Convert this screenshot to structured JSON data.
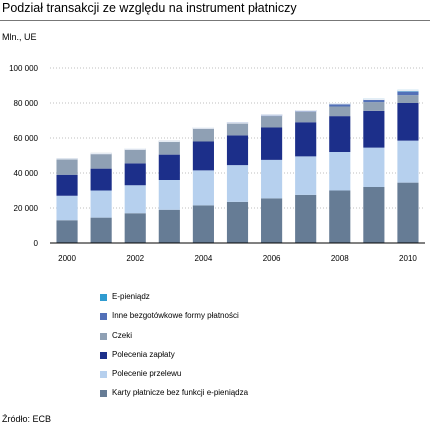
{
  "header": {
    "title": "Podział transakcji ze względu na instrument płatniczy",
    "unit": "Mln., UE"
  },
  "footer": {
    "source": "Źródło: ECB"
  },
  "colors": {
    "title_rule": "#777777",
    "axis": "#000000",
    "gridline": "#aaaaaa"
  },
  "chart_data": {
    "type": "bar",
    "stacked": true,
    "title": "",
    "xlabel": "",
    "ylabel": "",
    "categories": [
      "2000",
      "2001",
      "2002",
      "2003",
      "2004",
      "2005",
      "2006",
      "2007",
      "2008",
      "2009",
      "2010"
    ],
    "x_tick_labels": [
      "2000",
      "",
      "2002",
      "",
      "2004",
      "",
      "2006",
      "",
      "2008",
      "",
      "2010"
    ],
    "ylim": [
      0,
      100000
    ],
    "yticks": [
      0,
      20000,
      40000,
      60000,
      80000,
      100000
    ],
    "ytick_labels": [
      "0",
      "20 000",
      "40 000",
      "60 000",
      "80 000",
      "100 000"
    ],
    "grid": "horizontal dotted",
    "legend_position": "bottom",
    "series": [
      {
        "name": "Karty płatnicze bez funkcji e-pieniądza",
        "color": "#667c95",
        "values": [
          13000,
          14500,
          17000,
          19000,
          21500,
          23500,
          25500,
          27500,
          30000,
          32000,
          34500
        ]
      },
      {
        "name": "Polecenie przelewu",
        "color": "#b6d0ee",
        "values": [
          14000,
          15500,
          16000,
          17000,
          20000,
          21000,
          22000,
          22000,
          22000,
          22500,
          24000
        ]
      },
      {
        "name": "Polecenia zapłaty",
        "color": "#1c2f8a",
        "values": [
          12000,
          12500,
          12500,
          14500,
          16500,
          17000,
          18500,
          19500,
          20500,
          21000,
          21500
        ]
      },
      {
        "name": "Czeki",
        "color": "#8fa0b4",
        "values": [
          9500,
          9000,
          8500,
          8000,
          7500,
          7000,
          6500,
          6000,
          5500,
          5000,
          4500
        ]
      },
      {
        "name": "Inne bezgotówkowe formy płatności",
        "color": "#5270b8",
        "values": [
          0,
          0,
          0,
          0,
          500,
          500,
          1000,
          1000,
          1500,
          1500,
          2000
        ]
      },
      {
        "name": "E-pieniądz",
        "color": "#2f9bd0",
        "values": [
          0,
          0,
          0,
          0,
          0,
          0,
          0,
          0,
          500,
          500,
          1000
        ]
      }
    ]
  }
}
